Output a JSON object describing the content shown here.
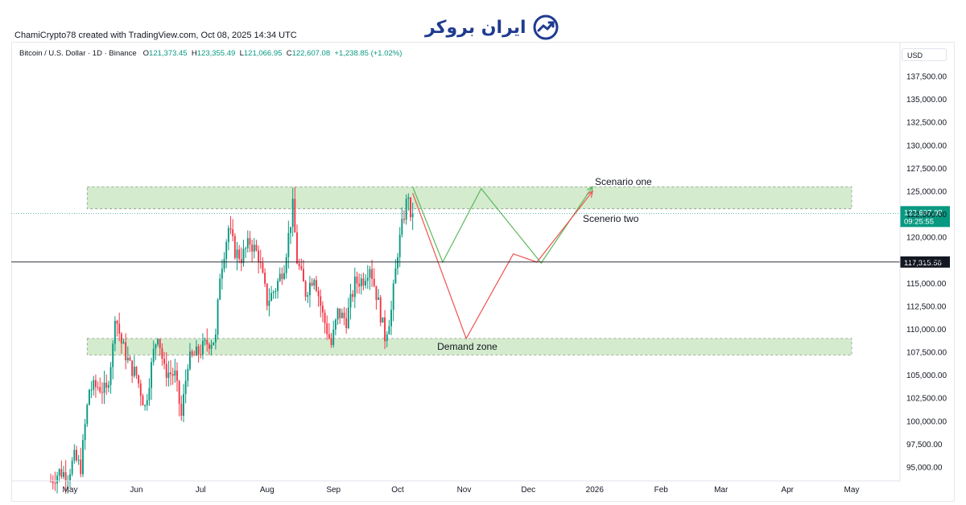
{
  "header": {
    "credit": "ChamiCrypto78 created with TradingView.com, Oct 08, 2025 14:34 UTC",
    "brand": "ایران بروکر",
    "currency": "USD"
  },
  "legend": {
    "symbol": "Bitcoin / U.S. Dollar · 1D · Binance",
    "o_label": "O",
    "o": "121,373.45",
    "h_label": "H",
    "h": "123,355.49",
    "l_label": "L",
    "l": "121,066.95",
    "c_label": "C",
    "c": "122,607.08",
    "change": "+1,238.85 (+1.02%)"
  },
  "colors": {
    "up": "#089981",
    "down": "#f23645",
    "zone_fill": "#cde8c6",
    "zone_edge": "#8a9a88",
    "scenario_one": "#5cb85c",
    "scenario_two": "#ef5350",
    "price_tag": "#089981",
    "level_tag": "#131722"
  },
  "chart_data": {
    "type": "candlestick",
    "title": "Bitcoin / U.S. Dollar · 1D · Binance",
    "y_ticks": [
      95000,
      97500,
      100000,
      102500,
      105000,
      107500,
      110000,
      112500,
      115000,
      117500,
      120000,
      122500,
      125000,
      127500,
      130000,
      132500,
      135000,
      137500
    ],
    "y_tick_labels": [
      "95,000.00",
      "97,500.00",
      "100,000.00",
      "102,500.00",
      "105,000.00",
      "107,500.00",
      "110,000.00",
      "112,500.00",
      "115,000.00",
      "117,500.00",
      "120,000.00",
      "122,500.00",
      "125,000.00",
      "127,500.00",
      "130,000.00",
      "132,500.00",
      "135,000.00",
      "137,500.00"
    ],
    "x_ticks": [
      {
        "date": "2025-05-01",
        "label": "May"
      },
      {
        "date": "2025-06-01",
        "label": "Jun"
      },
      {
        "date": "2025-07-01",
        "label": "Jul"
      },
      {
        "date": "2025-08-01",
        "label": "Aug"
      },
      {
        "date": "2025-09-01",
        "label": "Sep"
      },
      {
        "date": "2025-10-01",
        "label": "Oct"
      },
      {
        "date": "2025-11-01",
        "label": "Nov"
      },
      {
        "date": "2025-12-01",
        "label": "Dec"
      },
      {
        "date": "2026-01-01",
        "label": "2026"
      },
      {
        "date": "2026-02-01",
        "label": "Feb"
      },
      {
        "date": "2026-03-01",
        "label": "Mar"
      },
      {
        "date": "2026-04-01",
        "label": "Apr"
      },
      {
        "date": "2026-05-01",
        "label": "May"
      }
    ],
    "close_path": [
      [
        "2025-04-22",
        93500
      ],
      [
        "2025-04-26",
        94500
      ],
      [
        "2025-04-30",
        94200
      ],
      [
        "2025-05-03",
        96000
      ],
      [
        "2025-05-06",
        95000
      ],
      [
        "2025-05-08",
        99500
      ],
      [
        "2025-05-10",
        103500
      ],
      [
        "2025-05-14",
        103800
      ],
      [
        "2025-05-18",
        103200
      ],
      [
        "2025-05-21",
        108000
      ],
      [
        "2025-05-22",
        111800
      ],
      [
        "2025-05-25",
        108500
      ],
      [
        "2025-05-29",
        106000
      ],
      [
        "2025-06-01",
        105000
      ],
      [
        "2025-06-05",
        101500
      ],
      [
        "2025-06-09",
        107500
      ],
      [
        "2025-06-11",
        109700
      ],
      [
        "2025-06-14",
        105500
      ],
      [
        "2025-06-19",
        105000
      ],
      [
        "2025-06-22",
        100500
      ],
      [
        "2025-06-25",
        106500
      ],
      [
        "2025-06-30",
        107500
      ],
      [
        "2025-07-04",
        108500
      ],
      [
        "2025-07-08",
        109000
      ],
      [
        "2025-07-10",
        116000
      ],
      [
        "2025-07-14",
        121000
      ],
      [
        "2025-07-17",
        118500
      ],
      [
        "2025-07-20",
        117800
      ],
      [
        "2025-07-24",
        119500
      ],
      [
        "2025-07-28",
        118000
      ],
      [
        "2025-08-01",
        113000
      ],
      [
        "2025-08-05",
        114500
      ],
      [
        "2025-08-09",
        117000
      ],
      [
        "2025-08-13",
        123300
      ],
      [
        "2025-08-15",
        117500
      ],
      [
        "2025-08-19",
        114000
      ],
      [
        "2025-08-23",
        116000
      ],
      [
        "2025-08-27",
        111500
      ],
      [
        "2025-08-31",
        108300
      ],
      [
        "2025-09-03",
        111800
      ],
      [
        "2025-09-07",
        111000
      ],
      [
        "2025-09-11",
        115000
      ],
      [
        "2025-09-15",
        115500
      ],
      [
        "2025-09-18",
        117000
      ],
      [
        "2025-09-22",
        112800
      ],
      [
        "2025-09-25",
        109200
      ],
      [
        "2025-09-28",
        112000
      ],
      [
        "2025-10-01",
        118500
      ],
      [
        "2025-10-04",
        122500
      ],
      [
        "2025-10-06",
        124800
      ],
      [
        "2025-10-07",
        121373
      ],
      [
        "2025-10-08",
        122607
      ]
    ],
    "zones": [
      {
        "label": "",
        "from": "2025-05-09",
        "to": "2026-05-01",
        "low": 123100,
        "high": 125500
      },
      {
        "label": "Demand zone",
        "from": "2025-05-09",
        "to": "2026-05-01",
        "low": 107200,
        "high": 109000
      }
    ],
    "scenarios": [
      {
        "name": "Scenario one",
        "points": [
          [
            "2025-10-08",
            125500
          ],
          [
            "2025-10-22",
            117300
          ],
          [
            "2025-11-09",
            125300
          ],
          [
            "2025-12-07",
            117200
          ],
          [
            "2025-12-31",
            125500
          ]
        ]
      },
      {
        "name": "Scenerio two",
        "points": [
          [
            "2025-10-08",
            124800
          ],
          [
            "2025-11-02",
            109000
          ],
          [
            "2025-11-24",
            118200
          ],
          [
            "2025-12-05",
            117300
          ],
          [
            "2025-12-31",
            125000
          ]
        ]
      }
    ],
    "last_price": {
      "value": "122,607.08",
      "countdown": "09:25:55",
      "y": 122607.08
    },
    "horizontal_level": {
      "value": "117,315.58",
      "y": 117315.58
    }
  }
}
